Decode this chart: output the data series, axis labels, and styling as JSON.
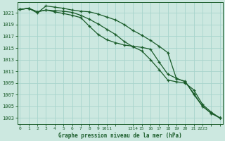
{
  "title": "Graphe pression niveau de la mer (hPa)",
  "background_color": "#cce8e0",
  "grid_color": "#a8d4cc",
  "line_color": "#1a5c2a",
  "ylim": [
    1002.0,
    1022.8
  ],
  "xlim": [
    -0.3,
    23.3
  ],
  "yticks": [
    1003,
    1005,
    1007,
    1009,
    1011,
    1013,
    1015,
    1017,
    1019,
    1021
  ],
  "x_values": [
    0,
    1,
    2,
    3,
    4,
    5,
    6,
    7,
    8,
    9,
    10,
    11,
    12,
    13,
    14,
    15,
    16,
    17,
    18,
    19,
    20,
    21,
    22,
    23
  ],
  "xtick_positions": [
    0,
    1,
    2,
    3,
    4,
    5,
    6,
    7,
    8,
    9,
    10,
    11,
    13,
    14,
    15,
    16,
    17,
    18,
    19,
    20,
    21,
    22,
    23
  ],
  "xtick_labels": [
    "0",
    "1",
    "2",
    "3",
    "4",
    "5",
    "6",
    "7",
    "8",
    "9",
    "1011",
    "",
    "1314",
    "15",
    "16",
    "17",
    "18",
    "19",
    "20",
    "21",
    "2223",
    "",
    ""
  ],
  "series": [
    [
      1021.6,
      1021.8,
      1021.2,
      1021.5,
      1021.4,
      1021.3,
      1021.1,
      1020.6,
      1019.9,
      1019.1,
      1018.2,
      1017.3,
      1016.1,
      1015.2,
      1014.5,
      1013.0,
      1011.3,
      1009.5,
      1009.2,
      1009.0,
      1007.8,
      1005.3,
      1004.0,
      1003.0
    ],
    [
      1021.6,
      1021.8,
      1021.0,
      1022.2,
      1022.0,
      1021.8,
      1021.5,
      1021.3,
      1021.2,
      1020.8,
      1020.3,
      1019.8,
      1019.0,
      1018.0,
      1017.2,
      1016.3,
      1015.3,
      1014.2,
      1009.7,
      1009.3,
      1007.0,
      1005.0,
      1003.8,
      1003.0
    ],
    [
      1021.6,
      1021.8,
      1021.2,
      1021.5,
      1021.2,
      1020.9,
      1020.6,
      1020.2,
      1018.7,
      1017.3,
      1016.4,
      1015.9,
      1015.5,
      1015.3,
      1015.1,
      1014.8,
      1012.6,
      1010.5,
      1009.8,
      1009.2,
      1007.2,
      1005.0,
      1003.8,
      1003.0
    ]
  ],
  "figsize": [
    3.2,
    2.0
  ],
  "dpi": 100
}
